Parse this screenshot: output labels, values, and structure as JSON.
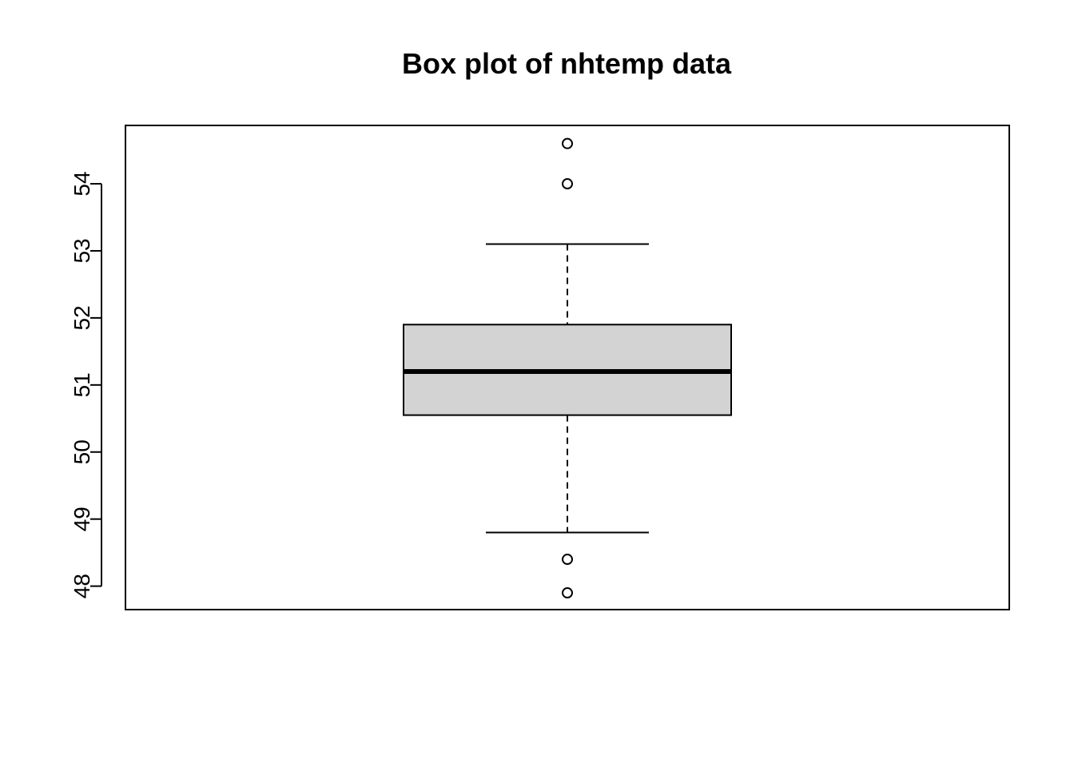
{
  "chart_data": {
    "type": "box",
    "title": "Box plot of nhtemp data",
    "xlabel": "",
    "ylabel": "",
    "ylim": [
      47.65,
      54.87
    ],
    "yticks": [
      48,
      49,
      50,
      51,
      52,
      53,
      54
    ],
    "grid": false,
    "series": [
      {
        "whisker_low": 48.8,
        "q1": 50.55,
        "median": 51.2,
        "q3": 51.9,
        "whisker_high": 53.1,
        "outliers": [
          54.6,
          54.0,
          48.4,
          47.9
        ]
      }
    ],
    "colors": {
      "box_fill": "#d3d3d3",
      "stroke": "#000000"
    }
  }
}
